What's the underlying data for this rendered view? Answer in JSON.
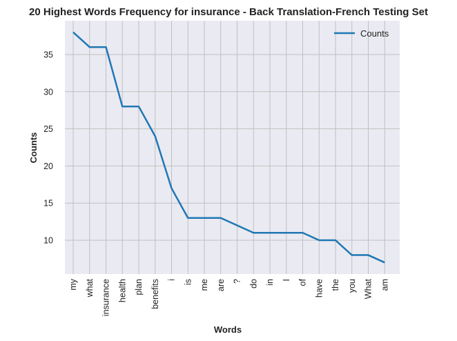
{
  "chart_data": {
    "type": "line",
    "title": "20 Highest Words Frequency for insurance - Back Translation-French Testing Set",
    "xlabel": "Words",
    "ylabel": "Counts",
    "categories": [
      "my",
      "what",
      "insurance",
      "health",
      "plan",
      "benefits",
      "i",
      "is",
      "me",
      "are",
      "?",
      "do",
      "in",
      "I",
      "of",
      "have",
      "the",
      "you",
      "What",
      "am"
    ],
    "series": [
      {
        "name": "Counts",
        "values": [
          38,
          36,
          36,
          28,
          28,
          24,
          17,
          13,
          13,
          13,
          12,
          11,
          11,
          11,
          11,
          10,
          10,
          8,
          8,
          7
        ],
        "color": "#1f77b4"
      }
    ],
    "yticks": [
      10,
      15,
      20,
      25,
      30,
      35
    ],
    "ylim": [
      5.45,
      39.55
    ],
    "grid": true,
    "legend_position": "top-right",
    "background_color": "#eaeaf2",
    "grid_color": "#c0c0c0"
  }
}
